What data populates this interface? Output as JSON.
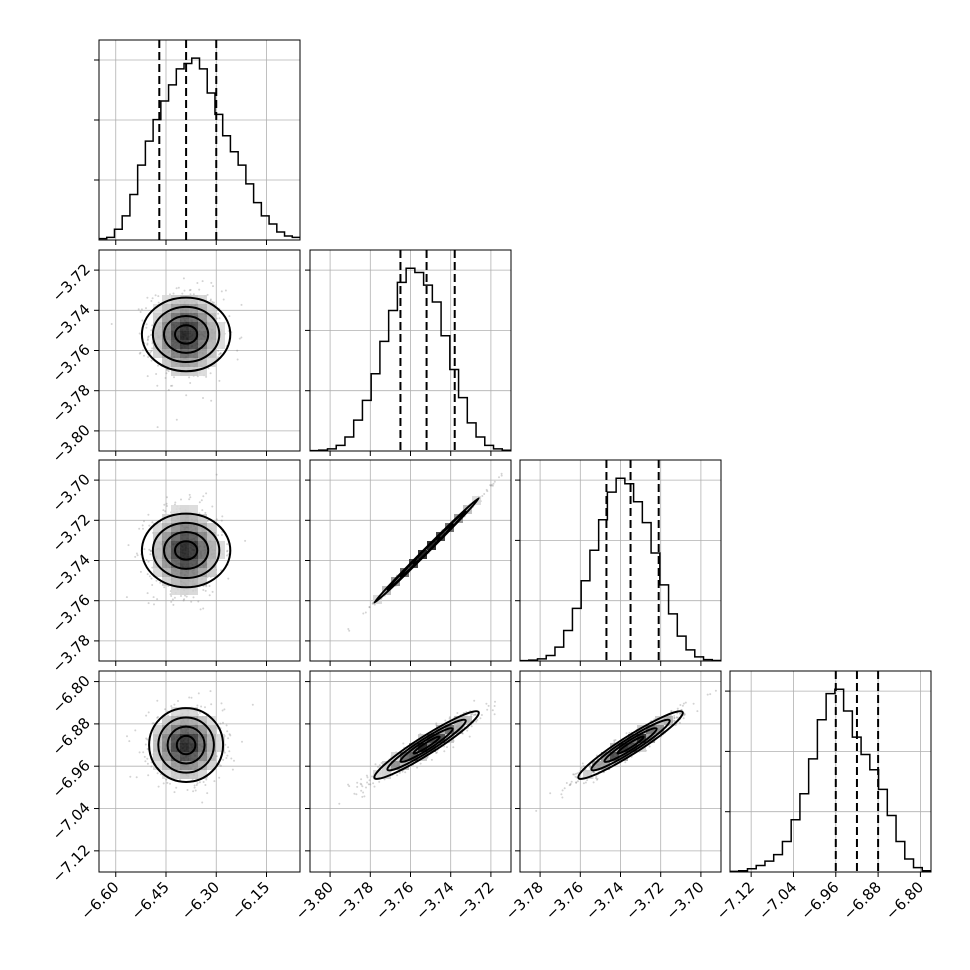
{
  "chart_data": {
    "type": "corner",
    "grid": true,
    "parameters": [
      {
        "index": 0,
        "range": [
          -6.65,
          -6.05
        ],
        "ticks": [
          -6.6,
          -6.45,
          -6.3,
          -6.15
        ],
        "tick_labels": [
          "−6.60",
          "−6.45",
          "−6.30",
          "−6.15"
        ],
        "quantiles": [
          -6.47,
          -6.39,
          -6.3
        ],
        "median": -6.39,
        "hist_counts": [
          0.5,
          1,
          4,
          9,
          17,
          28,
          37,
          45,
          52,
          58,
          64,
          66,
          68,
          64,
          55,
          47,
          39,
          33,
          28,
          21,
          14,
          9,
          6,
          3,
          1.5,
          1
        ]
      },
      {
        "index": 1,
        "range": [
          -3.81,
          -3.71
        ],
        "ticks": [
          -3.8,
          -3.78,
          -3.76,
          -3.74,
          -3.72
        ],
        "tick_labels": [
          "−3.80",
          "−3.78",
          "−3.76",
          "−3.74",
          "−3.72"
        ],
        "quantiles": [
          -3.765,
          -3.752,
          -3.738
        ],
        "median": -3.752,
        "hist_counts": [
          0.3,
          0.6,
          1.5,
          4,
          10,
          22,
          36,
          55,
          78,
          100,
          120,
          130,
          127,
          118,
          106,
          82,
          58,
          38,
          20,
          10,
          4,
          1.5,
          0.5
        ]
      },
      {
        "index": 2,
        "range": [
          -3.79,
          -3.69
        ],
        "ticks": [
          -3.78,
          -3.76,
          -3.74,
          -3.72,
          -3.7
        ],
        "tick_labels": [
          "−3.78",
          "−3.76",
          "−3.74",
          "−3.72",
          "−3.70"
        ],
        "quantiles": [
          -3.747,
          -3.735,
          -3.721
        ],
        "median": -3.735,
        "hist_counts": [
          0.3,
          0.6,
          1.5,
          4,
          10,
          22,
          38,
          58,
          80,
          102,
          122,
          132,
          128,
          115,
          100,
          78,
          55,
          34,
          18,
          8,
          3,
          1,
          0.4
        ]
      },
      {
        "index": 3,
        "range": [
          -7.16,
          -6.78
        ],
        "ticks": [
          -7.12,
          -7.04,
          -6.96,
          -6.88,
          -6.8
        ],
        "tick_labels": [
          "−7.12",
          "−7.04",
          "−6.96",
          "−6.88",
          "−6.80"
        ],
        "quantiles": [
          -6.96,
          -6.92,
          -6.88
        ],
        "median": -6.92,
        "hist_counts": [
          0.3,
          0.6,
          1.5,
          3,
          5,
          8,
          14,
          24,
          36,
          52,
          70,
          82,
          84,
          74,
          62,
          54,
          47,
          38,
          26,
          14,
          6,
          2,
          0.6
        ]
      }
    ],
    "pair_correlations": {
      "1-0": 0.0,
      "2-0": 0.0,
      "3-0": 0.0,
      "2-1": 0.998,
      "3-1": 0.95,
      "3-2": 0.95
    },
    "pair_std_scale": {
      "1-0": [
        0.055,
        0.011
      ],
      "2-0": [
        0.055,
        0.011
      ],
      "3-0": [
        0.055,
        0.035
      ],
      "2-1": [
        0.013,
        0.013
      ],
      "3-1": [
        0.013,
        0.032
      ],
      "3-2": [
        0.013,
        0.032
      ]
    },
    "contour_levels_sigma": [
      0.5,
      1.0,
      1.5,
      2.0
    ],
    "colors": {
      "ink": "#000000",
      "scatter": "#808080",
      "grid": "#b0b0b0"
    }
  }
}
